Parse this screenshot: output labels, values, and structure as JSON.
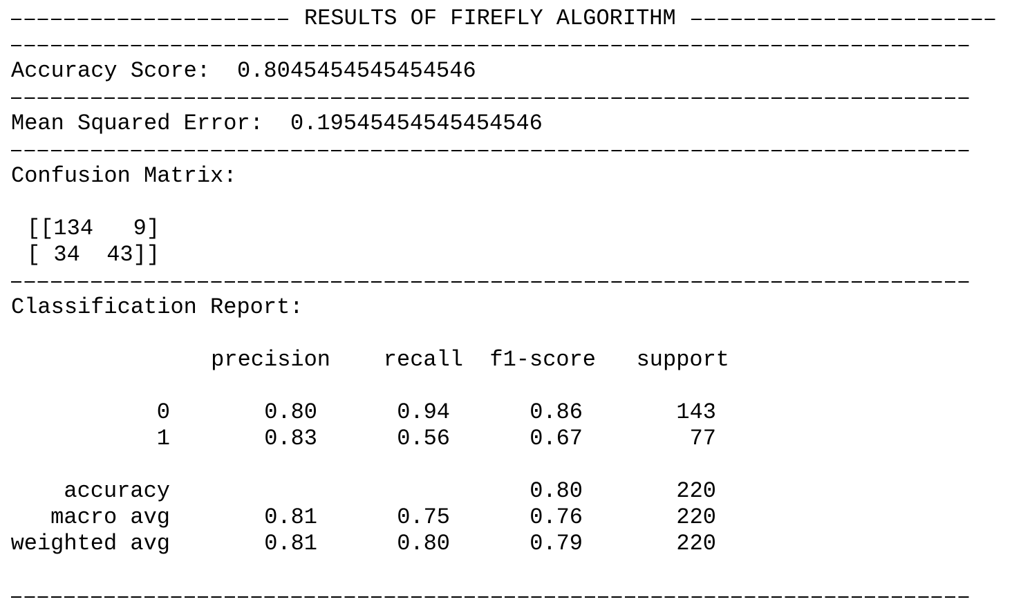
{
  "title": "RESULTS OF FIREFLY ALGORITHM",
  "accuracy": {
    "label": "Accuracy Score:",
    "value": "0.8045454545454546"
  },
  "mse": {
    "label": "Mean Squared Error:",
    "value": "0.19545454545454546"
  },
  "confusion_matrix": {
    "label": "Confusion Matrix:",
    "rows": [
      "[[134   9]",
      "[ 34  43]]"
    ]
  },
  "classification_report": {
    "label": "Classification Report:",
    "headers": [
      "precision",
      "recall",
      "f1-score",
      "support"
    ],
    "rows": [
      {
        "label": "0",
        "values": [
          "0.80",
          "0.94",
          "0.86",
          "143"
        ]
      },
      {
        "label": "1",
        "values": [
          "0.83",
          "0.56",
          "0.67",
          "77"
        ]
      },
      {
        "label": "accuracy",
        "values": [
          null,
          null,
          "0.80",
          "220"
        ]
      },
      {
        "label": "macro avg",
        "values": [
          "0.81",
          "0.75",
          "0.76",
          "220"
        ]
      },
      {
        "label": "weighted avg",
        "values": [
          "0.81",
          "0.80",
          "0.79",
          "220"
        ]
      }
    ]
  }
}
